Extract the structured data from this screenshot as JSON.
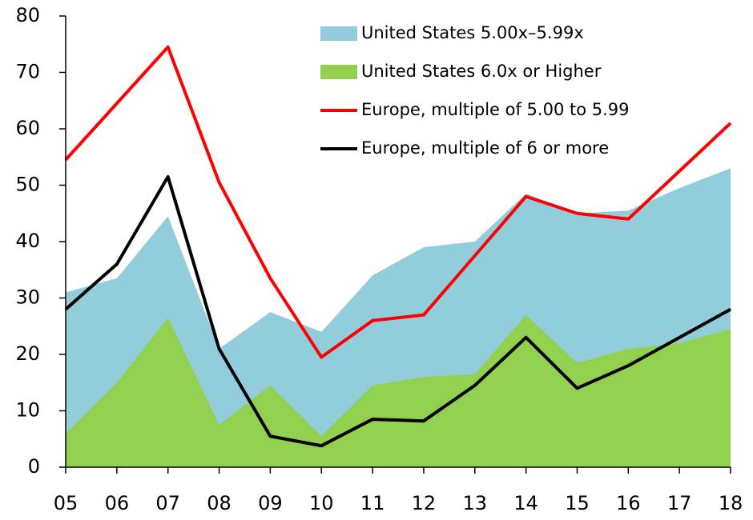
{
  "chart_data": {
    "type": "line",
    "categories": [
      "05",
      "06",
      "07",
      "08",
      "09",
      "10",
      "11",
      "12",
      "13",
      "14",
      "15",
      "16",
      "17",
      "18"
    ],
    "ylim": [
      0,
      80
    ],
    "yticks": [
      0,
      10,
      20,
      30,
      40,
      50,
      60,
      70,
      80
    ],
    "legend": "top-right",
    "series": [
      {
        "name": "United States 5.00x–5.99x",
        "type": "area",
        "color": "#92cddc",
        "values": [
          31,
          33.5,
          44.5,
          21,
          27.5,
          24,
          34,
          39,
          40,
          48.5,
          45,
          45.5,
          49.5,
          53
        ]
      },
      {
        "name": "United States 6.0x or Higher",
        "type": "area",
        "color": "#92d050",
        "values": [
          6,
          15,
          26.5,
          7.5,
          14.5,
          5.5,
          14.5,
          16,
          16.5,
          27,
          18.5,
          21,
          22,
          24.5
        ]
      },
      {
        "name": "Europe, multiple of 5.00 to 5.99",
        "type": "line",
        "color": "#ff0000",
        "values": [
          54.5,
          64.5,
          74.5,
          50.5,
          33.5,
          19.5,
          26,
          27,
          37.5,
          48,
          45,
          44,
          52.5,
          61
        ]
      },
      {
        "name": "Europe, multiple of 6 or more",
        "type": "line",
        "color": "#000000",
        "values": [
          28,
          36,
          51.5,
          21,
          5.5,
          3.8,
          8.5,
          8.2,
          14.5,
          23,
          14,
          18,
          23,
          28
        ]
      }
    ]
  }
}
